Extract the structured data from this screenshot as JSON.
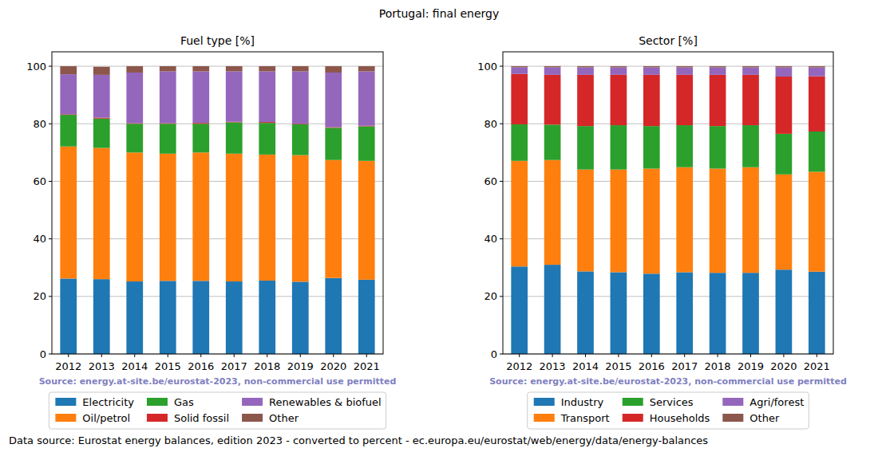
{
  "title": "Portugal: final energy",
  "footnote": "Data source: Eurostat energy balances, edition 2023 - converted to percent - ec.europa.eu/eurostat/web/energy/data/energy-balances",
  "chart_data": [
    {
      "type": "bar",
      "stacked": true,
      "grid": true,
      "title": "Fuel type [%]",
      "annotation": "Source: energy.at-site.be/eurostat-2023, non-commercial use permitted",
      "categories": [
        "2012",
        "2013",
        "2014",
        "2015",
        "2016",
        "2017",
        "2018",
        "2019",
        "2020",
        "2021"
      ],
      "ylim": [
        0,
        105
      ],
      "yticks": [
        0,
        20,
        40,
        60,
        80,
        100
      ],
      "series": [
        {
          "name": "Electricity",
          "color": "#1f77b4",
          "values": [
            26.2,
            26.0,
            25.2,
            25.4,
            25.4,
            25.2,
            25.5,
            25.1,
            26.4,
            25.8
          ]
        },
        {
          "name": "Oil/petrol",
          "color": "#ff7f0e",
          "values": [
            45.9,
            45.6,
            44.8,
            44.2,
            44.6,
            44.4,
            43.8,
            44.0,
            41.0,
            41.3
          ]
        },
        {
          "name": "Gas",
          "color": "#2ca02c",
          "values": [
            11.0,
            10.2,
            10.0,
            10.4,
            10.0,
            10.9,
            11.0,
            10.7,
            11.2,
            12.0
          ]
        },
        {
          "name": "Solid fossil",
          "color": "#d62728",
          "values": [
            0.2,
            0.3,
            0.2,
            0.2,
            0.3,
            0.2,
            0.3,
            0.2,
            0.2,
            0.2
          ]
        },
        {
          "name": "Renewables & biofuel",
          "color": "#9467bd",
          "values": [
            13.9,
            14.9,
            17.6,
            18.0,
            17.9,
            17.5,
            17.6,
            18.2,
            19.0,
            18.9
          ]
        },
        {
          "name": "Other",
          "color": "#8c564b",
          "values": [
            2.8,
            2.8,
            2.2,
            1.8,
            1.8,
            1.8,
            1.8,
            1.8,
            2.2,
            1.8
          ]
        }
      ]
    },
    {
      "type": "bar",
      "stacked": true,
      "grid": true,
      "title": "Sector [%]",
      "annotation": "Source: energy.at-site.be/eurostat-2023, non-commercial use permitted",
      "categories": [
        "2012",
        "2013",
        "2014",
        "2015",
        "2016",
        "2017",
        "2018",
        "2019",
        "2020",
        "2021"
      ],
      "ylim": [
        0,
        105
      ],
      "yticks": [
        0,
        20,
        40,
        60,
        80,
        100
      ],
      "series": [
        {
          "name": "Industry",
          "color": "#1f77b4",
          "values": [
            30.4,
            31.0,
            28.7,
            28.4,
            27.9,
            28.4,
            28.2,
            28.2,
            29.3,
            28.6
          ]
        },
        {
          "name": "Transport",
          "color": "#ff7f0e",
          "values": [
            36.7,
            36.4,
            35.4,
            35.7,
            36.5,
            36.5,
            36.2,
            36.7,
            33.1,
            34.7
          ]
        },
        {
          "name": "Services",
          "color": "#2ca02c",
          "values": [
            12.7,
            12.3,
            15.1,
            15.4,
            14.8,
            14.6,
            14.8,
            14.6,
            14.1,
            14.0
          ]
        },
        {
          "name": "Households",
          "color": "#d62728",
          "values": [
            17.5,
            17.3,
            17.8,
            17.5,
            17.8,
            17.5,
            17.8,
            17.5,
            19.9,
            19.2
          ]
        },
        {
          "name": "Agri/forest",
          "color": "#9467bd",
          "values": [
            2.3,
            2.6,
            2.6,
            2.6,
            2.6,
            2.6,
            2.6,
            2.6,
            3.2,
            3.1
          ]
        },
        {
          "name": "Other",
          "color": "#8c564b",
          "values": [
            0.4,
            0.4,
            0.4,
            0.4,
            0.4,
            0.4,
            0.4,
            0.4,
            0.4,
            0.4
          ]
        }
      ]
    }
  ]
}
